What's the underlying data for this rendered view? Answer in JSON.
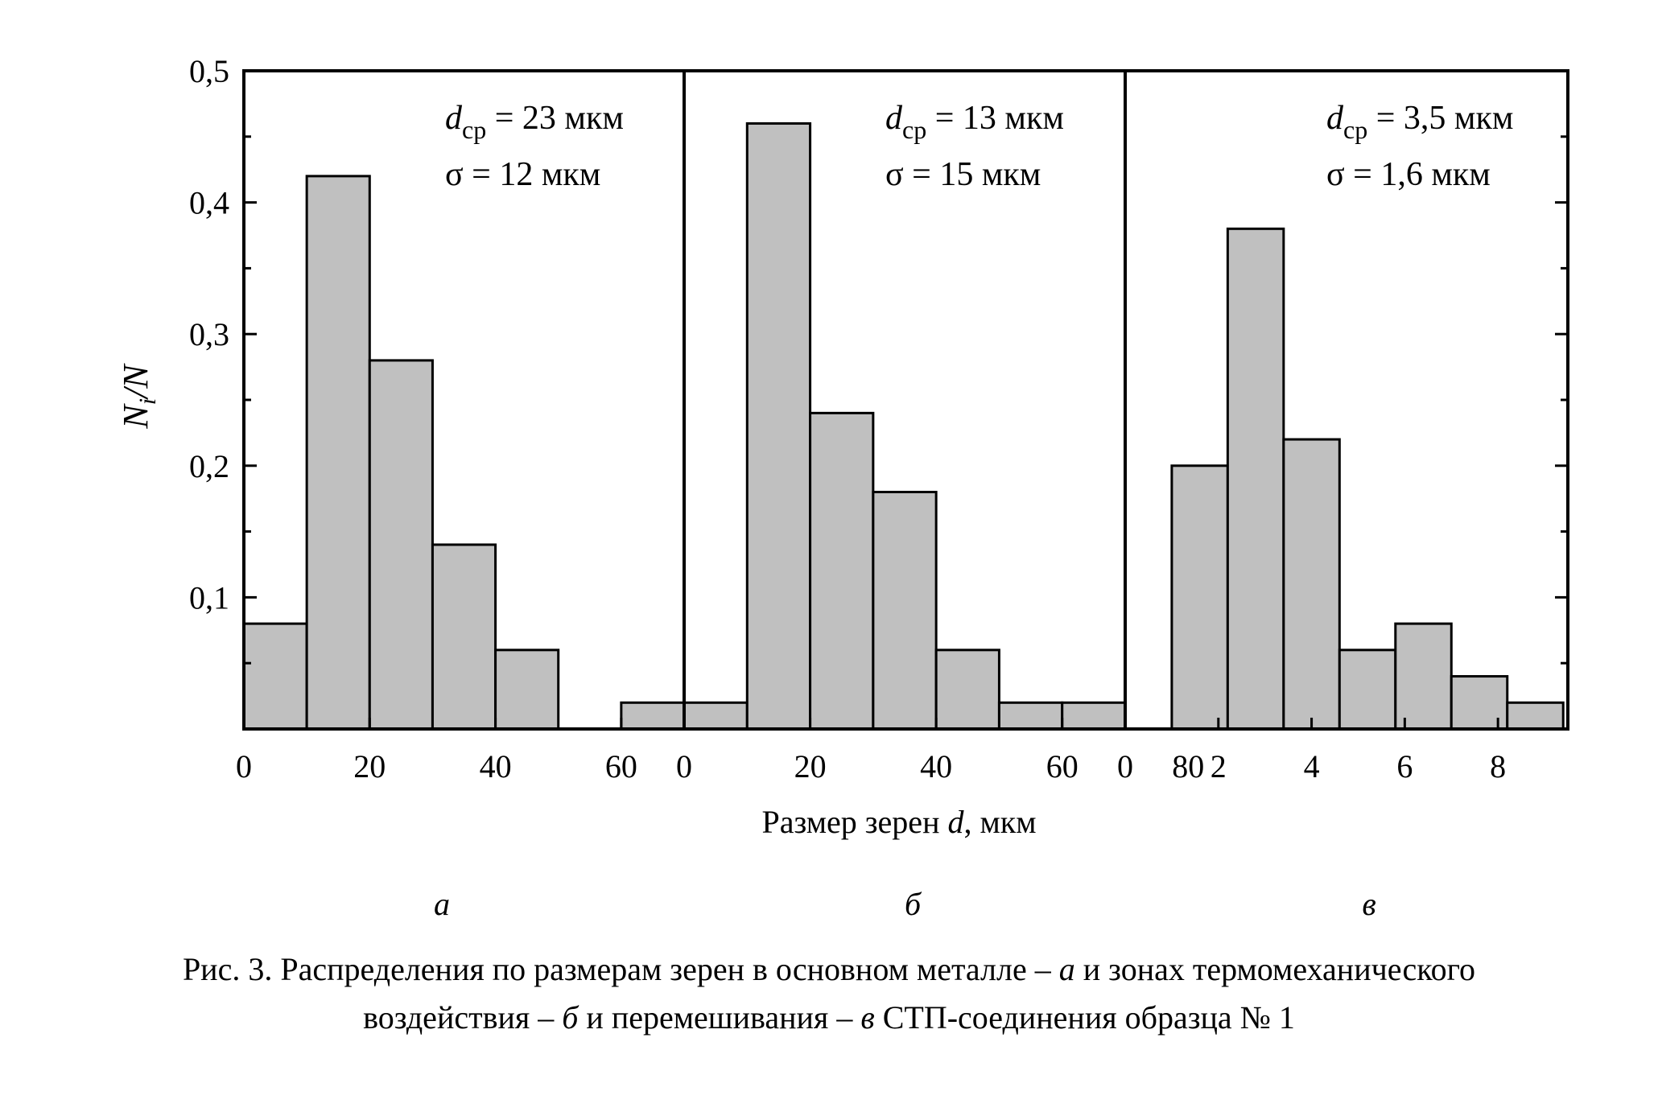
{
  "figure": {
    "ylabel_main": "N",
    "ylabel_sub": "i",
    "ylabel_tail": "/N",
    "xlabel_prefix": "Размер зерен ",
    "xlabel_var": "d",
    "xlabel_suffix": ", мкм",
    "y_tick_labels": [
      "0,1",
      "0,2",
      "0,3",
      "0,4",
      "0,5"
    ],
    "panel_letters": [
      "а",
      "б",
      "в"
    ],
    "caption": {
      "line1_a": "Рис. 3. Распределения по размерам зерен в основном металле – ",
      "line1_b": "а",
      "line1_c": " и зонах термомеханического",
      "line2_a": "воздействия – ",
      "line2_b": "б",
      "line2_c": " и перемешивания – ",
      "line2_d": "в",
      "line2_e": " СТП-соединения образца № 1"
    }
  },
  "chart_data": [
    {
      "type": "bar",
      "panel": "а",
      "ylim": [
        0,
        0.5
      ],
      "xlim": [
        0,
        70
      ],
      "x_ticks": [
        0,
        20,
        40,
        60
      ],
      "x_tick_labels": [
        "0",
        "20",
        "40",
        "60"
      ],
      "bin_width": 10,
      "bin_starts": [
        0,
        10,
        20,
        30,
        40,
        50,
        60
      ],
      "values": [
        0.08,
        0.42,
        0.28,
        0.14,
        0.06,
        0.0,
        0.02
      ],
      "annotation": {
        "d_sym": "d",
        "d_sub": "ср",
        "d_val": " = 23 мкм",
        "sigma": "σ = 12 мкм"
      }
    },
    {
      "type": "bar",
      "panel": "б",
      "ylim": [
        0,
        0.5
      ],
      "xlim": [
        0,
        70
      ],
      "x_ticks": [
        0,
        20,
        40,
        60,
        80
      ],
      "x_tick_labels": [
        "0",
        "20",
        "40",
        "60",
        "80"
      ],
      "bin_width": 10,
      "bin_starts": [
        0,
        10,
        20,
        30,
        40,
        50,
        60
      ],
      "values": [
        0.02,
        0.46,
        0.24,
        0.18,
        0.06,
        0.02,
        0.02
      ],
      "annotation": {
        "d_sym": "d",
        "d_sub": "ср",
        "d_val": " = 13 мкм",
        "sigma": "σ = 15 мкм"
      }
    },
    {
      "type": "bar",
      "panel": "в",
      "ylim": [
        0,
        0.5
      ],
      "xlim": [
        0,
        9.5
      ],
      "x_ticks": [
        0,
        2,
        4,
        6,
        8
      ],
      "x_tick_labels": [
        "0",
        "2",
        "4",
        "6",
        "8"
      ],
      "bin_width": 1.2,
      "bin_starts": [
        1.0,
        2.2,
        3.4,
        4.6,
        5.8,
        7.0,
        8.2
      ],
      "values": [
        0.2,
        0.38,
        0.22,
        0.06,
        0.08,
        0.04,
        0.02
      ],
      "annotation": {
        "d_sym": "d",
        "d_sub": "ср",
        "d_val": " = 3,5 мкм",
        "sigma": "σ = 1,6 мкм"
      }
    }
  ]
}
